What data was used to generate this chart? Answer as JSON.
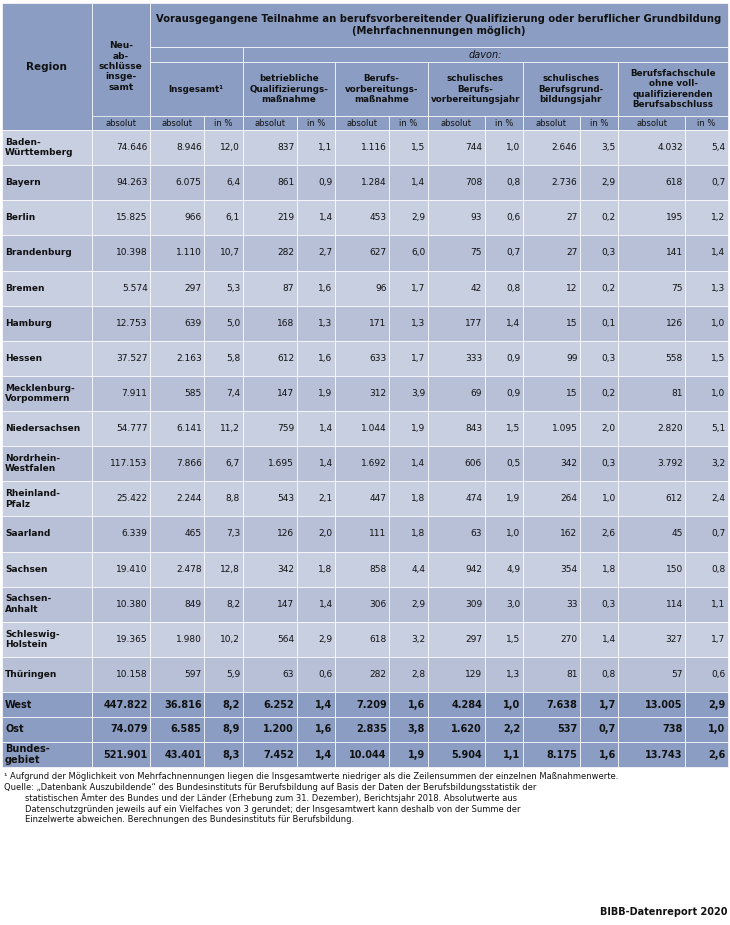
{
  "main_header": "Vorausgegangene Teilnahme an berufsvorbereitender Qualifizierung oder beruflicher Grundbildung\n(Mehrfachnennungen möglich)",
  "davon_header": "davon:",
  "rows": [
    [
      "Baden-\nWürttemberg",
      "74.646",
      "8.946",
      "12,0",
      "837",
      "1,1",
      "1.116",
      "1,5",
      "744",
      "1,0",
      "2.646",
      "3,5",
      "4.032",
      "5,4"
    ],
    [
      "Bayern",
      "94.263",
      "6.075",
      "6,4",
      "861",
      "0,9",
      "1.284",
      "1,4",
      "708",
      "0,8",
      "2.736",
      "2,9",
      "618",
      "0,7"
    ],
    [
      "Berlin",
      "15.825",
      "966",
      "6,1",
      "219",
      "1,4",
      "453",
      "2,9",
      "93",
      "0,6",
      "27",
      "0,2",
      "195",
      "1,2"
    ],
    [
      "Brandenburg",
      "10.398",
      "1.110",
      "10,7",
      "282",
      "2,7",
      "627",
      "6,0",
      "75",
      "0,7",
      "27",
      "0,3",
      "141",
      "1,4"
    ],
    [
      "Bremen",
      "5.574",
      "297",
      "5,3",
      "87",
      "1,6",
      "96",
      "1,7",
      "42",
      "0,8",
      "12",
      "0,2",
      "75",
      "1,3"
    ],
    [
      "Hamburg",
      "12.753",
      "639",
      "5,0",
      "168",
      "1,3",
      "171",
      "1,3",
      "177",
      "1,4",
      "15",
      "0,1",
      "126",
      "1,0"
    ],
    [
      "Hessen",
      "37.527",
      "2.163",
      "5,8",
      "612",
      "1,6",
      "633",
      "1,7",
      "333",
      "0,9",
      "99",
      "0,3",
      "558",
      "1,5"
    ],
    [
      "Mecklenburg-\nVorpommern",
      "7.911",
      "585",
      "7,4",
      "147",
      "1,9",
      "312",
      "3,9",
      "69",
      "0,9",
      "15",
      "0,2",
      "81",
      "1,0"
    ],
    [
      "Niedersachsen",
      "54.777",
      "6.141",
      "11,2",
      "759",
      "1,4",
      "1.044",
      "1,9",
      "843",
      "1,5",
      "1.095",
      "2,0",
      "2.820",
      "5,1"
    ],
    [
      "Nordrhein-\nWestfalen",
      "117.153",
      "7.866",
      "6,7",
      "1.695",
      "1,4",
      "1.692",
      "1,4",
      "606",
      "0,5",
      "342",
      "0,3",
      "3.792",
      "3,2"
    ],
    [
      "Rheinland-\nPfalz",
      "25.422",
      "2.244",
      "8,8",
      "543",
      "2,1",
      "447",
      "1,8",
      "474",
      "1,9",
      "264",
      "1,0",
      "612",
      "2,4"
    ],
    [
      "Saarland",
      "6.339",
      "465",
      "7,3",
      "126",
      "2,0",
      "111",
      "1,8",
      "63",
      "1,0",
      "162",
      "2,6",
      "45",
      "0,7"
    ],
    [
      "Sachsen",
      "19.410",
      "2.478",
      "12,8",
      "342",
      "1,8",
      "858",
      "4,4",
      "942",
      "4,9",
      "354",
      "1,8",
      "150",
      "0,8"
    ],
    [
      "Sachsen-\nAnhalt",
      "10.380",
      "849",
      "8,2",
      "147",
      "1,4",
      "306",
      "2,9",
      "309",
      "3,0",
      "33",
      "0,3",
      "114",
      "1,1"
    ],
    [
      "Schleswig-\nHolstein",
      "19.365",
      "1.980",
      "10,2",
      "564",
      "2,9",
      "618",
      "3,2",
      "297",
      "1,5",
      "270",
      "1,4",
      "327",
      "1,7"
    ],
    [
      "Thüringen",
      "10.158",
      "597",
      "5,9",
      "63",
      "0,6",
      "282",
      "2,8",
      "129",
      "1,3",
      "81",
      "0,8",
      "57",
      "0,6"
    ]
  ],
  "summary_rows": [
    [
      "West",
      "447.822",
      "36.816",
      "8,2",
      "6.252",
      "1,4",
      "7.209",
      "1,6",
      "4.284",
      "1,0",
      "7.638",
      "1,7",
      "13.005",
      "2,9"
    ],
    [
      "Ost",
      "74.079",
      "6.585",
      "8,9",
      "1.200",
      "1,6",
      "2.835",
      "3,8",
      "1.620",
      "2,2",
      "537",
      "0,7",
      "738",
      "1,0"
    ],
    [
      "Bundes-\ngebiet",
      "521.901",
      "43.401",
      "8,3",
      "7.452",
      "1,4",
      "10.044",
      "1,9",
      "5.904",
      "1,1",
      "8.175",
      "1,6",
      "13.743",
      "2,6"
    ]
  ],
  "footnote1": "¹ Aufgrund der Möglichkeit von Mehrfachnennungen liegen die Insgesamtwerte niedriger als die Zeilensummen der einzelnen Maßnahmenwerte.",
  "footnote2": "Quelle: „Datenbank Auszubildende“ des Bundesinstituts für Berufsbildung auf Basis der Daten der Berufsbildungsstatistik der\n        statistischen Ämter des Bundes und der Länder (Erhebung zum 31. Dezember), Berichtsjahr 2018. Absolutwerte aus\n        Datenschutzgründen jeweils auf ein Vielfaches von 3 gerundet; der Insgesamtwert kann deshalb von der Summe der\n        Einzelwerte abweichen. Berechnungen des Bundesinstituts für Berufsbildung.",
  "source_right": "BIBB-Datenreport 2020",
  "bg_header": "#8b9dc3",
  "bg_row_light": "#c8cfe0",
  "bg_row_dark": "#b8c0d8",
  "bg_summary": "#8b9dc3",
  "col_group_headers": [
    "Insgesamt¹",
    "betriebliche\nQualifizierungs-\nmaßnahme",
    "Berufs-\nvorbereitungs-\nmaßnahme",
    "schulisches\nBerufs-\nvorbereitungsjahr",
    "schulisches\nBerufsgrund-\nbildungsjahr",
    "Berufsfachschule\nohne voll-\nqualifizierenden\nBerufsabschluss"
  ]
}
